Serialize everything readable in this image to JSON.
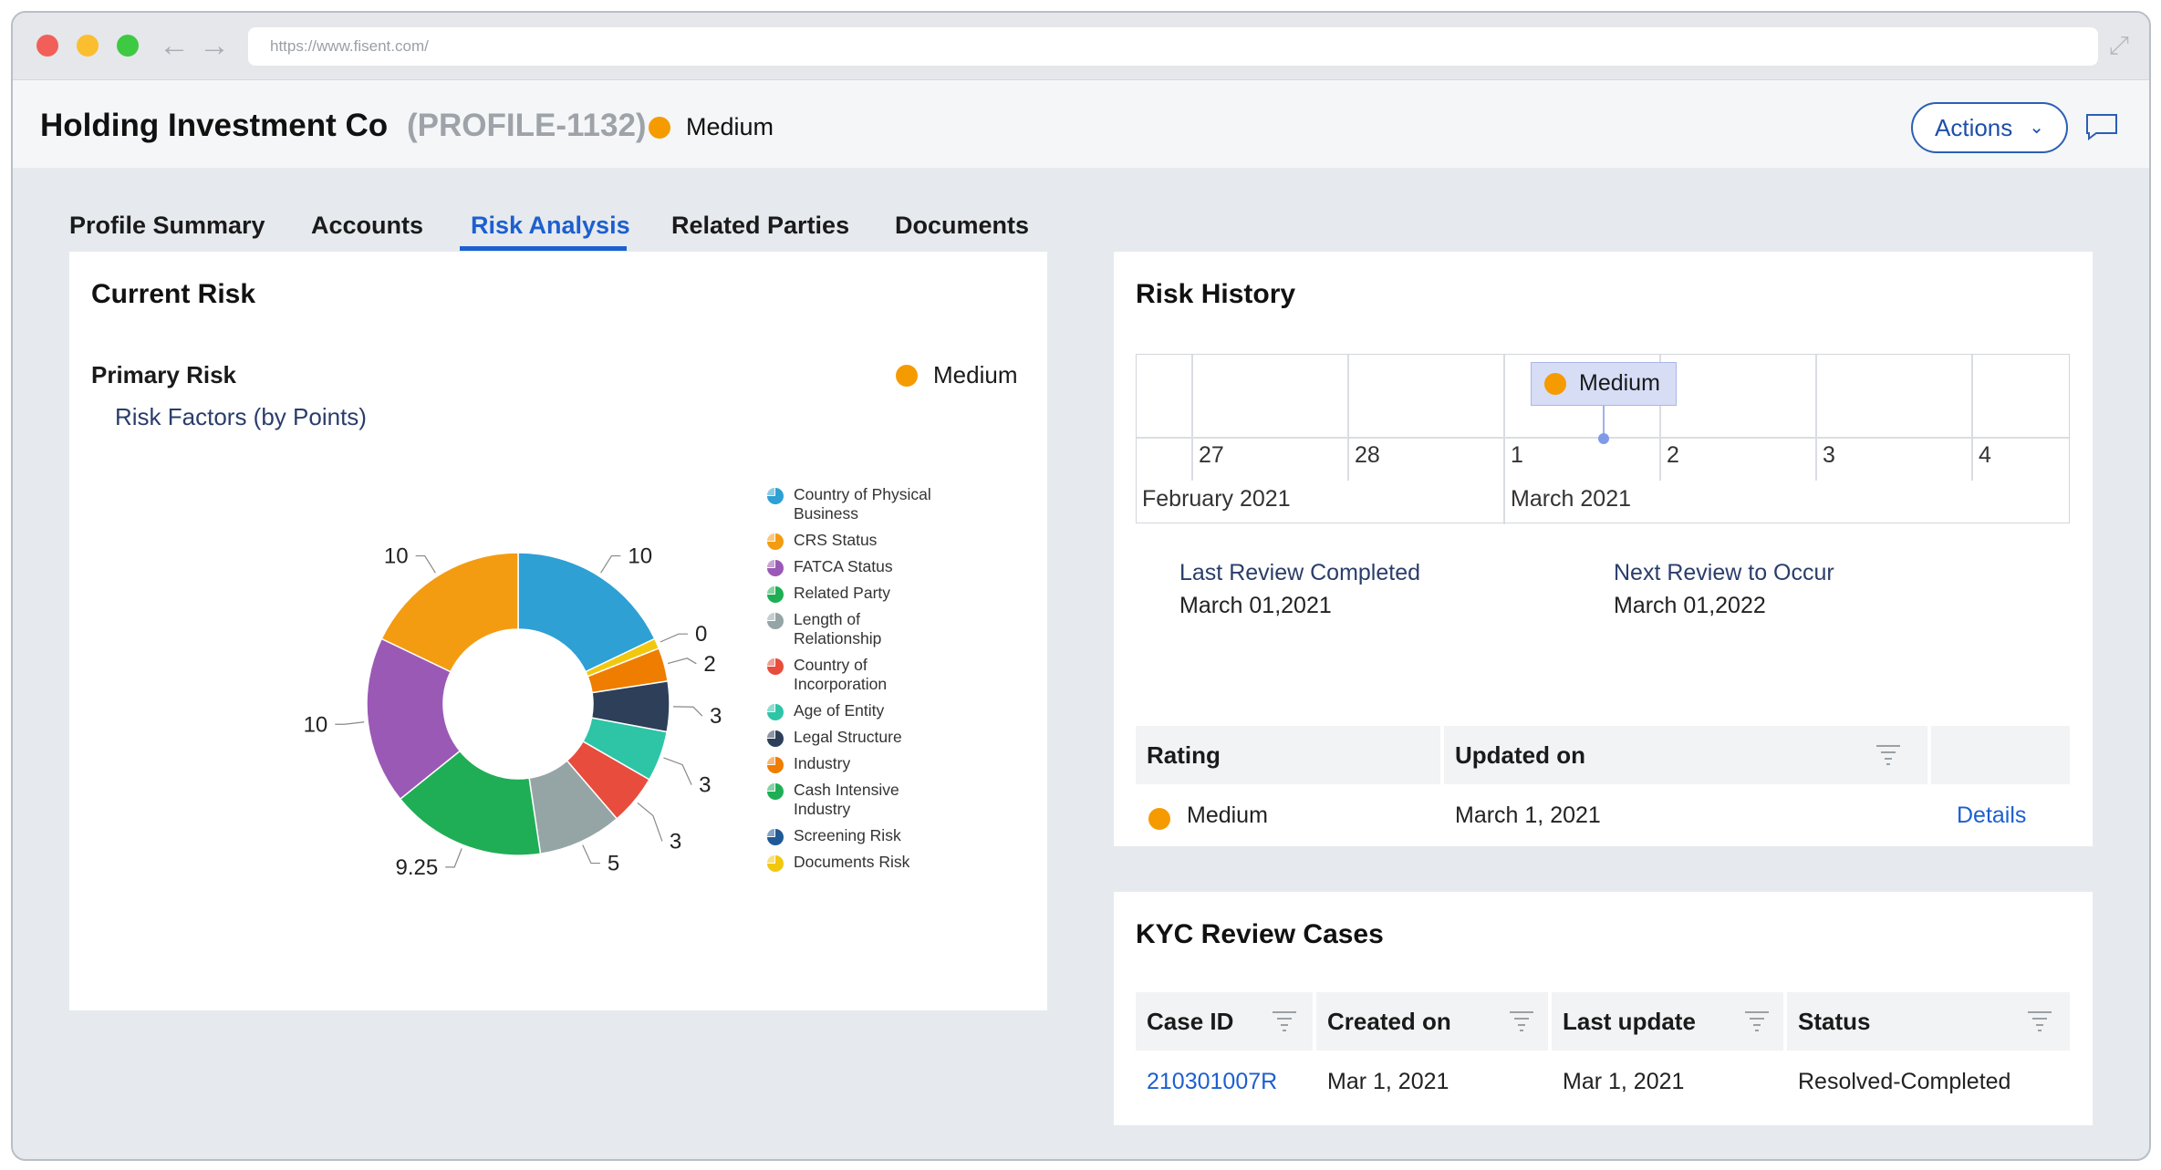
{
  "browser": {
    "url": "https://www.fisent.com/"
  },
  "header": {
    "title": "Holding Investment Co",
    "profile_id": "(PROFILE-1132)",
    "risk_level": "Medium",
    "actions_label": "Actions"
  },
  "tabs": [
    {
      "label": "Profile Summary",
      "active": false
    },
    {
      "label": "Accounts",
      "active": false
    },
    {
      "label": "Risk Analysis",
      "active": true
    },
    {
      "label": "Related Parties",
      "active": false
    },
    {
      "label": "Documents",
      "active": false
    }
  ],
  "current_risk": {
    "title": "Current Risk",
    "primary_risk_label": "Primary Risk",
    "primary_risk_value": "Medium",
    "chart_title": "Risk Factors (by Points)"
  },
  "chart_data": {
    "type": "pie",
    "title": "Risk Factors (by Points)",
    "categories": [
      "Country of Physical Business",
      "CRS Status",
      "FATCA Status",
      "Related Party",
      "Length of Relationship",
      "Country of Incorporation",
      "Age of Entity",
      "Legal Structure",
      "Industry",
      "Cash Intensive Industry",
      "Screening Risk",
      "Documents Risk"
    ],
    "values": [
      10,
      10,
      10,
      9.25,
      5,
      3,
      3,
      3,
      2,
      0,
      0,
      0
    ],
    "slice_order": [
      {
        "label": "Country of Physical Business",
        "value": 10,
        "color": "#2ea0d4"
      },
      {
        "label": "Documents Risk",
        "value": 0,
        "color": "#f2c80f"
      },
      {
        "label": "Industry",
        "value": 2,
        "color": "#ef7d00"
      },
      {
        "label": "Legal Structure",
        "value": 3,
        "color": "#2d3f59"
      },
      {
        "label": "Age of Entity",
        "value": 3,
        "color": "#2ec4a6"
      },
      {
        "label": "Country of Incorporation",
        "value": 3,
        "color": "#e84c3d"
      },
      {
        "label": "Length of Relationship",
        "value": 5,
        "color": "#95a5a6"
      },
      {
        "label": "Related Party",
        "value": 9.25,
        "color": "#1fae55"
      },
      {
        "label": "FATCA Status",
        "value": 10,
        "color": "#9b59b6"
      },
      {
        "label": "CRS Status",
        "value": 10,
        "color": "#f39c12"
      }
    ],
    "legend": [
      {
        "lines": [
          "Country of Physical",
          "Business"
        ],
        "color": "#2ea0d4"
      },
      {
        "lines": [
          "CRS Status"
        ],
        "color": "#f39c12"
      },
      {
        "lines": [
          "FATCA Status"
        ],
        "color": "#9b59b6"
      },
      {
        "lines": [
          "Related Party"
        ],
        "color": "#1fae55"
      },
      {
        "lines": [
          "Length of",
          "Relationship"
        ],
        "color": "#95a5a6"
      },
      {
        "lines": [
          "Country of",
          "Incorporation"
        ],
        "color": "#e84c3d"
      },
      {
        "lines": [
          "Age of Entity"
        ],
        "color": "#2ec4a6"
      },
      {
        "lines": [
          "Legal Structure"
        ],
        "color": "#2d3f59"
      },
      {
        "lines": [
          "Industry"
        ],
        "color": "#ef7d00"
      },
      {
        "lines": [
          "Cash Intensive",
          "Industry"
        ],
        "color": "#1fae55"
      },
      {
        "lines": [
          "Screening Risk"
        ],
        "color": "#1f5a96"
      },
      {
        "lines": [
          "Documents Risk"
        ],
        "color": "#f2c80f"
      }
    ],
    "legend_position": "right"
  },
  "risk_history": {
    "title": "Risk History",
    "timeline_days": [
      "27",
      "28",
      "1",
      "2",
      "3",
      "4"
    ],
    "timeline_months": [
      "February 2021",
      "March 2021"
    ],
    "event_label": "Medium",
    "last_review_label": "Last Review Completed",
    "last_review_value": "March 01,2021",
    "next_review_label": "Next Review to Occur",
    "next_review_value": "March 01,2022",
    "table": {
      "headers": [
        "Rating",
        "Updated on"
      ],
      "row": {
        "rating": "Medium",
        "updated_on": "March 1, 2021",
        "link": "Details"
      }
    }
  },
  "kyc": {
    "title": "KYC Review Cases",
    "headers": [
      "Case ID",
      "Created on",
      "Last update",
      "Status"
    ],
    "row": {
      "case_id": "210301007R",
      "created_on": "Mar 1, 2021",
      "last_update": "Mar 1, 2021",
      "status": "Resolved-Completed"
    }
  },
  "colors": {
    "accent": "#1d5fd0",
    "medium": "#f59b00"
  }
}
